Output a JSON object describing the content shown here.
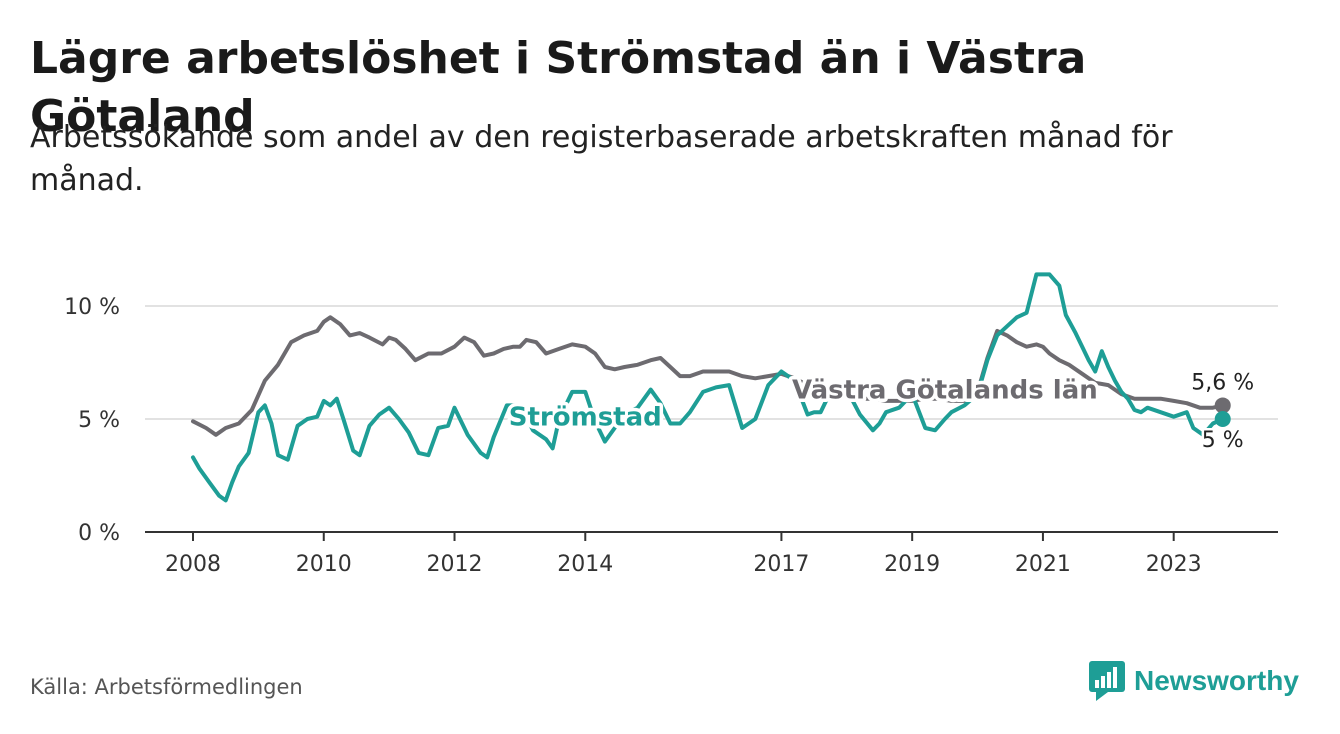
{
  "title": "Lägre arbetslöshet i Strömstad än i Västra Götaland",
  "subtitle": "Arbetssökande som andel av den registerbaserade arbetskraften månad för månad.",
  "source": "Källa: Arbetsförmedlingen",
  "brand": {
    "name": "Newsworthy",
    "icon": "bar-chart-speech-icon",
    "color": "#1e9e96"
  },
  "chart_data": {
    "type": "line",
    "title": "Lägre arbetslöshet i Strömstad än i Västra Götaland",
    "xlabel": "",
    "ylabel": "",
    "xlim": [
      2008,
      2023.8
    ],
    "ylim": [
      0,
      10
    ],
    "x_ticks": [
      2008,
      2010,
      2012,
      2014,
      2017,
      2019,
      2021,
      2023
    ],
    "x_tick_labels": [
      "2008",
      "2010",
      "2012",
      "2014",
      "2017",
      "2019",
      "2021",
      "2023"
    ],
    "y_ticks": [
      0,
      5,
      10
    ],
    "y_tick_labels": [
      "0 %",
      "5 %",
      "10 %"
    ],
    "grid": true,
    "series": [
      {
        "name": "Västra Götalands län",
        "color": "#6d6b70",
        "end_label": "5,6 %",
        "x": [
          2008,
          2008.2,
          2008.35,
          2008.5,
          2008.7,
          2008.9,
          2009.1,
          2009.3,
          2009.5,
          2009.7,
          2009.9,
          2010,
          2010.1,
          2010.25,
          2010.4,
          2010.55,
          2010.7,
          2010.9,
          2011,
          2011.1,
          2011.25,
          2011.4,
          2011.6,
          2011.8,
          2012,
          2012.15,
          2012.3,
          2012.45,
          2012.6,
          2012.75,
          2012.9,
          2013,
          2013.1,
          2013.25,
          2013.4,
          2013.6,
          2013.8,
          2014,
          2014.15,
          2014.3,
          2014.45,
          2014.6,
          2014.8,
          2015,
          2015.15,
          2015.3,
          2015.45,
          2015.6,
          2015.8,
          2016,
          2016.2,
          2016.4,
          2016.6,
          2016.8,
          2017,
          2017.2,
          2017.4,
          2017.6,
          2017.8,
          2018,
          2018.2,
          2018.4,
          2018.6,
          2018.8,
          2019,
          2019.2,
          2019.4,
          2019.6,
          2019.8,
          2020,
          2020.15,
          2020.3,
          2020.45,
          2020.6,
          2020.75,
          2020.9,
          2021,
          2021.1,
          2021.25,
          2021.4,
          2021.6,
          2021.8,
          2022,
          2022.2,
          2022.4,
          2022.6,
          2022.8,
          2023,
          2023.2,
          2023.4,
          2023.6,
          2023.75
        ],
        "y": [
          4.9,
          4.6,
          4.3,
          4.6,
          4.8,
          5.4,
          6.7,
          7.4,
          8.4,
          8.7,
          8.9,
          9.3,
          9.5,
          9.2,
          8.7,
          8.8,
          8.6,
          8.3,
          8.6,
          8.5,
          8.1,
          7.6,
          7.9,
          7.9,
          8.2,
          8.6,
          8.4,
          7.8,
          7.9,
          8.1,
          8.2,
          8.2,
          8.5,
          8.4,
          7.9,
          8.1,
          8.3,
          8.2,
          7.9,
          7.3,
          7.2,
          7.3,
          7.4,
          7.6,
          7.7,
          7.3,
          6.9,
          6.9,
          7.1,
          7.1,
          7.1,
          6.9,
          6.8,
          6.9,
          7.0,
          6.8,
          6.5,
          6.3,
          6.1,
          6.0,
          5.9,
          5.9,
          5.8,
          5.8,
          5.8,
          5.9,
          5.9,
          5.8,
          5.8,
          6.2,
          7.7,
          8.9,
          8.7,
          8.4,
          8.2,
          8.3,
          8.2,
          7.9,
          7.6,
          7.4,
          7.0,
          6.6,
          6.5,
          6.1,
          5.9,
          5.9,
          5.9,
          5.8,
          5.7,
          5.5,
          5.5,
          5.6
        ]
      },
      {
        "name": "Strömstad",
        "color": "#1e9e96",
        "end_label": "5 %",
        "x": [
          2008,
          2008.1,
          2008.25,
          2008.4,
          2008.5,
          2008.6,
          2008.7,
          2008.85,
          2009,
          2009.1,
          2009.2,
          2009.3,
          2009.45,
          2009.6,
          2009.75,
          2009.9,
          2010,
          2010.1,
          2010.2,
          2010.3,
          2010.45,
          2010.55,
          2010.7,
          2010.85,
          2011,
          2011.15,
          2011.3,
          2011.45,
          2011.6,
          2011.75,
          2011.9,
          2012,
          2012.2,
          2012.4,
          2012.5,
          2012.6,
          2012.8,
          2013,
          2013.2,
          2013.4,
          2013.5,
          2013.6,
          2013.8,
          2014,
          2014.15,
          2014.3,
          2014.45,
          2014.6,
          2014.8,
          2015,
          2015.15,
          2015.3,
          2015.45,
          2015.6,
          2015.8,
          2016,
          2016.2,
          2016.4,
          2016.6,
          2016.8,
          2017,
          2017.2,
          2017.4,
          2017.5,
          2017.6,
          2017.8,
          2018,
          2018.2,
          2018.4,
          2018.5,
          2018.6,
          2018.8,
          2019,
          2019.2,
          2019.35,
          2019.5,
          2019.6,
          2019.8,
          2020,
          2020.15,
          2020.3,
          2020.45,
          2020.6,
          2020.75,
          2020.9,
          2021,
          2021.1,
          2021.25,
          2021.35,
          2021.5,
          2021.6,
          2021.7,
          2021.8,
          2021.9,
          2022,
          2022.1,
          2022.2,
          2022.3,
          2022.4,
          2022.5,
          2022.6,
          2022.8,
          2023,
          2023.2,
          2023.3,
          2023.45,
          2023.6,
          2023.75
        ],
        "y": [
          3.3,
          2.8,
          2.2,
          1.6,
          1.4,
          2.2,
          2.9,
          3.5,
          5.3,
          5.6,
          4.8,
          3.4,
          3.2,
          4.7,
          5.0,
          5.1,
          5.8,
          5.6,
          5.9,
          5.0,
          3.6,
          3.4,
          4.7,
          5.2,
          5.5,
          5.0,
          4.4,
          3.5,
          3.4,
          4.6,
          4.7,
          5.5,
          4.3,
          3.5,
          3.3,
          4.2,
          5.6,
          5.6,
          4.5,
          4.1,
          3.7,
          5.0,
          6.2,
          6.2,
          4.9,
          4.0,
          4.6,
          5.2,
          5.5,
          6.3,
          5.7,
          4.8,
          4.8,
          5.3,
          6.2,
          6.4,
          6.5,
          4.6,
          5.0,
          6.5,
          7.1,
          6.7,
          5.2,
          5.3,
          5.3,
          6.5,
          6.3,
          5.2,
          4.5,
          4.8,
          5.3,
          5.5,
          6.1,
          4.6,
          4.5,
          5.0,
          5.3,
          5.6,
          6.1,
          7.6,
          8.7,
          9.1,
          9.5,
          9.7,
          11.4,
          11.4,
          11.4,
          10.9,
          9.6,
          8.8,
          8.2,
          7.6,
          7.1,
          8.0,
          7.3,
          6.7,
          6.2,
          5.9,
          5.4,
          5.3,
          5.5,
          5.3,
          5.1,
          5.3,
          4.6,
          4.3,
          4.8,
          5.0
        ]
      }
    ],
    "inline_labels": [
      {
        "series": "Strömstad",
        "text": "Strömstad",
        "x": 2014.0,
        "y": 5.1
      },
      {
        "series": "Västra Götalands län",
        "text": "Västra Götalands län",
        "x": 2019.5,
        "y": 6.3
      }
    ]
  }
}
